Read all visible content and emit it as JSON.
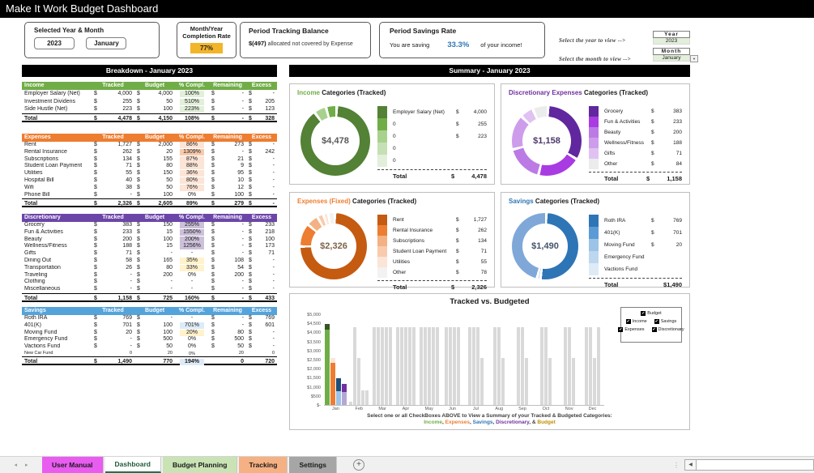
{
  "app": {
    "title": "Make It Work Budget Dashboard"
  },
  "header": {
    "selected_box": {
      "label": "Selected Year & Month",
      "year": "2023",
      "month": "January"
    },
    "completion_box": {
      "label": "Month/Year Completion Rate",
      "value": "77%"
    },
    "tracking_box": {
      "label": "Period Tracking Balance",
      "amount": "$(497)",
      "text": "allocated not covered by Expense"
    },
    "savings_box": {
      "label": "Period Savings Rate",
      "prefix": "You are saving",
      "rate": "33.3%",
      "suffix": "of your income!"
    },
    "year_select": {
      "hint": "Select the year to view -->",
      "label": "Year",
      "value": "2023"
    },
    "month_select": {
      "hint": "Select the month to view -->",
      "label": "Month",
      "value": "January",
      "dropdown_glyph": "▼"
    }
  },
  "breakdown": {
    "title": "Breakdown - January 2023",
    "columns": [
      "Tracked",
      "Budget",
      "% Compl.",
      "Remaining",
      "Excess"
    ],
    "tables": [
      {
        "key": "income",
        "name": "Income",
        "color": "#70AD47",
        "rowh": 9.7,
        "rows": [
          {
            "n": "Employer Salary (Net)",
            "t": "4,000",
            "b": "4,000",
            "c": "100%",
            "r": "-",
            "e": "-",
            "f": "g"
          },
          {
            "n": "Investment Dividens",
            "t": "255",
            "b": "50",
            "c": "510%",
            "r": "-",
            "e": "205",
            "f": "g"
          },
          {
            "n": "Side Hustle (Net)",
            "t": "223",
            "b": "100",
            "c": "223%",
            "r": "-",
            "e": "123",
            "f": "g"
          }
        ],
        "total": {
          "n": "Total",
          "t": "4,478",
          "b": "4,150",
          "c": "108%",
          "r": "-",
          "e": "328"
        }
      },
      {
        "key": "expenses",
        "name": "Expenses",
        "color": "#ED7D31",
        "rows": [
          {
            "n": "Rent",
            "t": "1,727",
            "b": "2,000",
            "c": "86%",
            "r": "273",
            "e": "-",
            "f": "p"
          },
          {
            "n": "Rental Insurance",
            "t": "262",
            "b": "20",
            "c": "1309%",
            "r": "-",
            "e": "242",
            "f": "P"
          },
          {
            "n": "Subscriptions",
            "t": "134",
            "b": "155",
            "c": "87%",
            "r": "21",
            "e": "-",
            "f": "p"
          },
          {
            "n": "Student Loan Payment",
            "t": "71",
            "b": "80",
            "c": "88%",
            "r": "9",
            "e": "-",
            "f": "p"
          },
          {
            "n": "Utilities",
            "t": "55",
            "b": "150",
            "c": "36%",
            "r": "95",
            "e": "-",
            "f": "p"
          },
          {
            "n": "Hospital Bill",
            "t": "40",
            "b": "50",
            "c": "80%",
            "r": "10",
            "e": "-",
            "f": "p"
          },
          {
            "n": "Wifi",
            "t": "38",
            "b": "50",
            "c": "76%",
            "r": "12",
            "e": "-",
            "f": "p"
          },
          {
            "n": "Phone Bill",
            "t": "-",
            "b": "100",
            "c": "0%",
            "r": "100",
            "e": "-",
            "f": ""
          }
        ],
        "total": {
          "n": "Total",
          "t": "2,326",
          "b": "2,605",
          "c": "89%",
          "r": "279",
          "e": "-"
        }
      },
      {
        "key": "discretionary",
        "name": "Discretionary",
        "color": "#6B46A8",
        "rows": [
          {
            "n": "Grocery",
            "t": "383",
            "b": "150",
            "c": "255%",
            "r": "-",
            "e": "233",
            "f": "l"
          },
          {
            "n": "Fun & Activities",
            "t": "233",
            "b": "15",
            "c": "1550%",
            "r": "-",
            "e": "218",
            "f": "l"
          },
          {
            "n": "Beauty",
            "t": "200",
            "b": "100",
            "c": "200%",
            "r": "-",
            "e": "100",
            "f": "l"
          },
          {
            "n": "Wellness/Fitness",
            "t": "188",
            "b": "15",
            "c": "1256%",
            "r": "-",
            "e": "173",
            "f": "l"
          },
          {
            "n": "Gifts",
            "t": "71",
            "b": "-",
            "c": "-",
            "r": "-",
            "e": "71",
            "f": ""
          },
          {
            "n": "Dining Out",
            "t": "58",
            "b": "165",
            "c": "35%",
            "r": "108",
            "e": "-",
            "f": "y"
          },
          {
            "n": "Transportation",
            "t": "26",
            "b": "80",
            "c": "33%",
            "r": "54",
            "e": "-",
            "f": "y"
          },
          {
            "n": "Traveling",
            "t": "-",
            "b": "200",
            "c": "0%",
            "r": "200",
            "e": "-",
            "f": ""
          },
          {
            "n": "Clothing",
            "t": "-",
            "b": "-",
            "c": "-",
            "r": "-",
            "e": "-",
            "f": ""
          },
          {
            "n": "Miscellaneous",
            "t": "-",
            "b": "-",
            "c": "-",
            "r": "-",
            "e": "-",
            "f": ""
          }
        ],
        "total": {
          "n": "Total",
          "t": "1,158",
          "b": "725",
          "c": "160%",
          "r": "-",
          "e": "433"
        }
      },
      {
        "key": "savings",
        "name": "Savings",
        "color": "#55A3DB",
        "rows": [
          {
            "n": "Roth IRA",
            "t": "769",
            "b": "-",
            "c": "-",
            "r": "-",
            "e": "769",
            "f": ""
          },
          {
            "n": "401(K)",
            "t": "701",
            "b": "100",
            "c": "701%",
            "r": "-",
            "e": "601",
            "f": "b"
          },
          {
            "n": "Moving Fund",
            "t": "20",
            "b": "100",
            "c": "20%",
            "r": "80",
            "e": "-",
            "f": "y"
          },
          {
            "n": "Emergency Fund",
            "t": "-",
            "b": "500",
            "c": "0%",
            "r": "500",
            "e": "-",
            "f": ""
          },
          {
            "n": "Vactions Fund",
            "t": "-",
            "b": "50",
            "c": "0%",
            "r": "50",
            "e": "-",
            "f": ""
          },
          {
            "n": "New Car Fund",
            "t": "0",
            "b": "20",
            "c": "0%",
            "r": "20",
            "e": "0",
            "f": "",
            "ds": "----",
            "small": true
          }
        ],
        "total": {
          "n": "Total",
          "t": "1,490",
          "b": "770",
          "c": "194%",
          "r": "0",
          "e": "720",
          "f": "b",
          "ds": "$---"
        }
      }
    ]
  },
  "summary": {
    "title": "Summary - January 2023",
    "cards": [
      {
        "title_colored": "Income",
        "title_rest": " Categories (Tracked)",
        "accent": "#70AD47",
        "center": "$4,478",
        "center_color": "#595959",
        "donut": [
          {
            "c": "#538135",
            "v": 4000
          },
          {
            "c": "#A9D18E",
            "v": 255
          },
          {
            "c": "#70AD47",
            "v": 223
          }
        ],
        "legend": [
          {
            "chip": "#538135",
            "label": "Employer Salary (Net)",
            "d": "$",
            "value": "4,000"
          },
          {
            "chip": "#70AD47",
            "label": "0",
            "d": "$",
            "value": "255"
          },
          {
            "chip": "#A9D18E",
            "label": "0",
            "d": "$",
            "value": "223"
          },
          {
            "chip": "#C5E0B4",
            "label": "0",
            "d": "",
            "value": ""
          },
          {
            "chip": "#E2EFDA",
            "label": "0",
            "d": "",
            "value": ""
          }
        ],
        "total_label": "Total",
        "total_d": "$",
        "total_value": "4,478"
      },
      {
        "title_colored": "Discretionary Expenses",
        "title_rest": " Categories (Tracked)",
        "accent": "#7030A0",
        "center": "$1,158",
        "center_color": "#4B3869",
        "donut": [
          {
            "c": "#61279E",
            "v": 383
          },
          {
            "c": "#A93BE3",
            "v": 233
          },
          {
            "c": "#BC7BE4",
            "v": 200
          },
          {
            "c": "#CD9DEC",
            "v": 188
          },
          {
            "c": "#DFC2F2",
            "v": 71
          },
          {
            "c": "#ECECEC",
            "v": 84
          }
        ],
        "legend": [
          {
            "chip": "#61279E",
            "label": "Grocery",
            "d": "$",
            "value": "383"
          },
          {
            "chip": "#A93BE3",
            "label": "Fun & Activities",
            "d": "$",
            "value": "233"
          },
          {
            "chip": "#BC7BE4",
            "label": "Beauty",
            "d": "$",
            "value": "200"
          },
          {
            "chip": "#CD9DEC",
            "label": "Wellness/Fitness",
            "d": "$",
            "value": "188"
          },
          {
            "chip": "#DFC2F2",
            "label": "Gifts",
            "d": "$",
            "value": "71"
          },
          {
            "chip": "#ECECEC",
            "label": "Other",
            "d": "$",
            "value": "84"
          }
        ],
        "total_label": "Total",
        "total_d": "$",
        "total_value": "1,158"
      },
      {
        "title_colored": "Expenses (Fixed)",
        "title_rest": " Categories (Tracked)",
        "accent": "#ED7D31",
        "center": "$2,326",
        "center_color": "#7F6248",
        "donut": [
          {
            "c": "#C55A11",
            "v": 1727
          },
          {
            "c": "#ED7D31",
            "v": 262
          },
          {
            "c": "#F4B183",
            "v": 134
          },
          {
            "c": "#F8CBAD",
            "v": 71
          },
          {
            "c": "#FBE5D6",
            "v": 55
          },
          {
            "c": "#F2F2F2",
            "v": 78
          }
        ],
        "legend": [
          {
            "chip": "#C55A11",
            "label": "Rent",
            "d": "$",
            "value": "1,727"
          },
          {
            "chip": "#ED7D31",
            "label": "Rental Insurance",
            "d": "$",
            "value": "262"
          },
          {
            "chip": "#F4B183",
            "label": "Subscriptions",
            "d": "$",
            "value": "134"
          },
          {
            "chip": "#F8CBAD",
            "label": "Student Loan Payment",
            "d": "$",
            "value": "71"
          },
          {
            "chip": "#FBE5D6",
            "label": "Utilities",
            "d": "$",
            "value": "55"
          },
          {
            "chip": "#F2F2F2",
            "label": "Other",
            "d": "$",
            "value": "78"
          }
        ],
        "total_label": "Total",
        "total_d": "$",
        "total_value": "2,326"
      },
      {
        "title_colored": "Savings",
        "title_rest": " Categories (Tracked)",
        "accent": "#2E75B6",
        "center": "$1,490",
        "center_color": "#44546A",
        "donut": [
          {
            "c": "#2E75B6",
            "v": 769
          },
          {
            "c": "#BDD7EE",
            "v": 20
          },
          {
            "c": "#7FA8D9",
            "v": 701
          }
        ],
        "legend": [
          {
            "chip": "#2E75B6",
            "label": "Roth IRA",
            "d": "$",
            "value": "769"
          },
          {
            "chip": "#5B9BD5",
            "label": "401(K)",
            "d": "$",
            "value": "701"
          },
          {
            "chip": "#9DC3E6",
            "label": "Moving Fund",
            "d": "$",
            "value": "20"
          },
          {
            "chip": "#BDD7EE",
            "label": "Emergency Fund",
            "d": "",
            "value": ""
          },
          {
            "chip": "#DEEBF7",
            "label": "Vactions Fund",
            "d": "",
            "value": ""
          }
        ],
        "total_label": "Total",
        "total_d": "",
        "total_value": "$1,490"
      }
    ],
    "footer": {
      "line1": "Select one or all CheckBoxes ABOVE to View a Summary of your Tracked & Budgeted Categories:",
      "line2_segments": [
        {
          "t": "Income",
          "c": "#70AD47"
        },
        {
          "t": ", ",
          "c": "#404040"
        },
        {
          "t": "Expenses",
          "c": "#ED7D31"
        },
        {
          "t": ", ",
          "c": "#404040"
        },
        {
          "t": "Savings",
          "c": "#2E75B6"
        },
        {
          "t": ", ",
          "c": "#404040"
        },
        {
          "t": "Discretionary",
          "c": "#7030A0"
        },
        {
          "t": ", & ",
          "c": "#404040"
        },
        {
          "t": "Budget",
          "c": "#BF8F00"
        }
      ]
    }
  },
  "chart_data": {
    "type": "bar",
    "title": "Tracked vs. Budgeted",
    "categories": [
      "Jan",
      "Feb",
      "Mar",
      "Apr",
      "May",
      "Jun",
      "Jul",
      "Aug",
      "Sep",
      "Oct",
      "Nov",
      "Dec"
    ],
    "ylim": [
      0,
      5000
    ],
    "y_tick_labels": [
      "$5,000",
      "$4,500",
      "$4,000",
      "$3,500",
      "$3,000",
      "$2,500",
      "$2,000",
      "$1,500",
      "$1,000",
      "$500",
      "$-"
    ],
    "legend": {
      "position": "top-right",
      "rows": [
        [
          "Budget"
        ],
        [
          "Income",
          "Savings"
        ],
        [
          "Expenses",
          "Discretionary"
        ]
      ]
    },
    "series": [
      {
        "name": "Income (tracked)",
        "color": "#70AD47",
        "values": [
          4478,
          0,
          0,
          0,
          0,
          0,
          0,
          0,
          0,
          0,
          0,
          0
        ]
      },
      {
        "name": "Expenses (tracked)",
        "color": "#ED7D31",
        "values": [
          2326,
          0,
          0,
          0,
          0,
          0,
          0,
          0,
          0,
          0,
          0,
          0
        ]
      },
      {
        "name": "Savings (tracked)",
        "color": "#1F4E79",
        "values": [
          1490,
          0,
          0,
          0,
          0,
          0,
          0,
          0,
          0,
          0,
          0,
          0
        ]
      },
      {
        "name": "Discretionary (tracked)",
        "color": "#7030A0",
        "values": [
          1158,
          0,
          0,
          0,
          0,
          0,
          0,
          0,
          0,
          0,
          0,
          0
        ]
      },
      {
        "name": "Budget (January)",
        "color": "#D9D9D9",
        "values": [
          4150,
          2605,
          770,
          725,
          0,
          0,
          0,
          0,
          0,
          0,
          0,
          0
        ]
      }
    ],
    "jan_bars": [
      {
        "series": "Income",
        "tracked": 4478,
        "budget": 4150,
        "lower": 4150,
        "upper": 4478,
        "lower_color": "#70AD47",
        "upper_color": "#375623"
      },
      {
        "series": "Expenses",
        "tracked": 2326,
        "budget": 2605,
        "lower": 2326,
        "upper": 2605,
        "lower_color": "#ED7D31",
        "upper_color": "#FBE5D6"
      },
      {
        "series": "Savings",
        "tracked": 1490,
        "budget": 770,
        "lower": 770,
        "upper": 1490,
        "lower_color": "#9DC3E6",
        "upper_color": "#1F4E79"
      },
      {
        "series": "Discretionary",
        "tracked": 1158,
        "budget": 725,
        "lower": 725,
        "upper": 1158,
        "lower_color": "#B4A7D6",
        "upper_color": "#7030A0"
      }
    ],
    "budget_bars_by_month": {
      "Feb": [
        200,
        4300,
        2600,
        800,
        800
      ],
      "Mar": [
        4300,
        4300,
        4300,
        4300,
        4300
      ],
      "Apr": [
        4300,
        4300,
        4300,
        4300,
        4300
      ],
      "May": [
        4300,
        4300,
        4300,
        4300,
        4300
      ],
      "Jun": [
        4300,
        4300,
        4300,
        4300
      ],
      "Jul": [
        4300,
        4300,
        4300,
        2600
      ],
      "Aug": [
        4300,
        4300,
        2600
      ],
      "Sep": [
        4300,
        4300,
        2600
      ],
      "Oct": [
        4300,
        4300,
        2600
      ],
      "Nov": [
        4300,
        4300,
        2600
      ],
      "Dec": [
        4300,
        4300,
        2600,
        4300
      ]
    },
    "bar_color_budget": "#D9D9D9"
  },
  "tabs": {
    "nav_left_glyph": "◂",
    "nav_right_glyph": "▸",
    "items": [
      {
        "label": "User Manual",
        "bg": "#E85CF0",
        "fg": "#1a1a1a",
        "active": false
      },
      {
        "label": "Dashboard",
        "bg": "#FFFFFF",
        "fg": "#1E5B38",
        "active": true
      },
      {
        "label": "Budget Planning",
        "bg": "#C9E3B5",
        "fg": "#1a1a1a",
        "active": false
      },
      {
        "label": "Tracking",
        "bg": "#F5B183",
        "fg": "#1a1a1a",
        "active": false
      },
      {
        "label": "Settings",
        "bg": "#A6A6A6",
        "fg": "#1a1a1a",
        "active": false
      }
    ],
    "add_label": "+",
    "scroll_left_glyph": "◀"
  }
}
